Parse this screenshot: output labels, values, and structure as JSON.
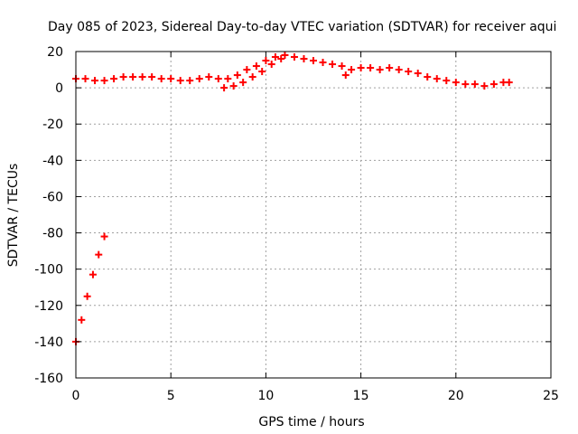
{
  "chart_data": {
    "type": "scatter",
    "title": "Day 085 of 2023, Sidereal Day-to-day VTEC variation (SDTVAR) for receiver aqui",
    "xlabel": "GPS time / hours",
    "ylabel": "SDTVAR / TECUs",
    "xlim": [
      0,
      25
    ],
    "ylim": [
      -160,
      20
    ],
    "xticks": [
      0,
      5,
      10,
      15,
      20,
      25
    ],
    "yticks": [
      20,
      0,
      -20,
      -40,
      -60,
      -80,
      -100,
      -120,
      -140,
      -160
    ],
    "grid": true,
    "marker": "plus",
    "series": [
      {
        "name": "SDTVAR",
        "color": "#ff0000",
        "x": [
          0.0,
          0.3,
          0.6,
          0.9,
          1.2,
          1.5,
          0.0,
          0.5,
          1.0,
          1.5,
          2.0,
          2.5,
          3.0,
          3.5,
          4.0,
          4.5,
          5.0,
          5.5,
          6.0,
          6.5,
          7.0,
          7.5,
          8.0,
          8.5,
          9.0,
          9.5,
          10.0,
          10.5,
          11.0,
          11.5,
          12.0,
          12.5,
          13.0,
          13.5,
          14.0,
          14.2,
          14.5,
          15.0,
          15.5,
          16.0,
          16.5,
          17.0,
          17.5,
          18.0,
          18.5,
          19.0,
          19.5,
          20.0,
          20.5,
          21.0,
          21.5,
          22.0,
          22.5,
          22.8,
          7.8,
          8.3,
          8.8,
          9.3,
          9.8,
          10.3,
          10.8
        ],
        "y": [
          -140,
          -128,
          -115,
          -103,
          -92,
          -82,
          5,
          5,
          4,
          4,
          5,
          6,
          6,
          6,
          6,
          5,
          5,
          4,
          4,
          5,
          6,
          5,
          5,
          7,
          10,
          12,
          15,
          17,
          18,
          17,
          16,
          15,
          14,
          13,
          12,
          7,
          10,
          11,
          11,
          10,
          11,
          10,
          9,
          8,
          6,
          5,
          4,
          3,
          2,
          2,
          1,
          2,
          3,
          3,
          0,
          1,
          3,
          6,
          9,
          13,
          16
        ]
      }
    ]
  }
}
